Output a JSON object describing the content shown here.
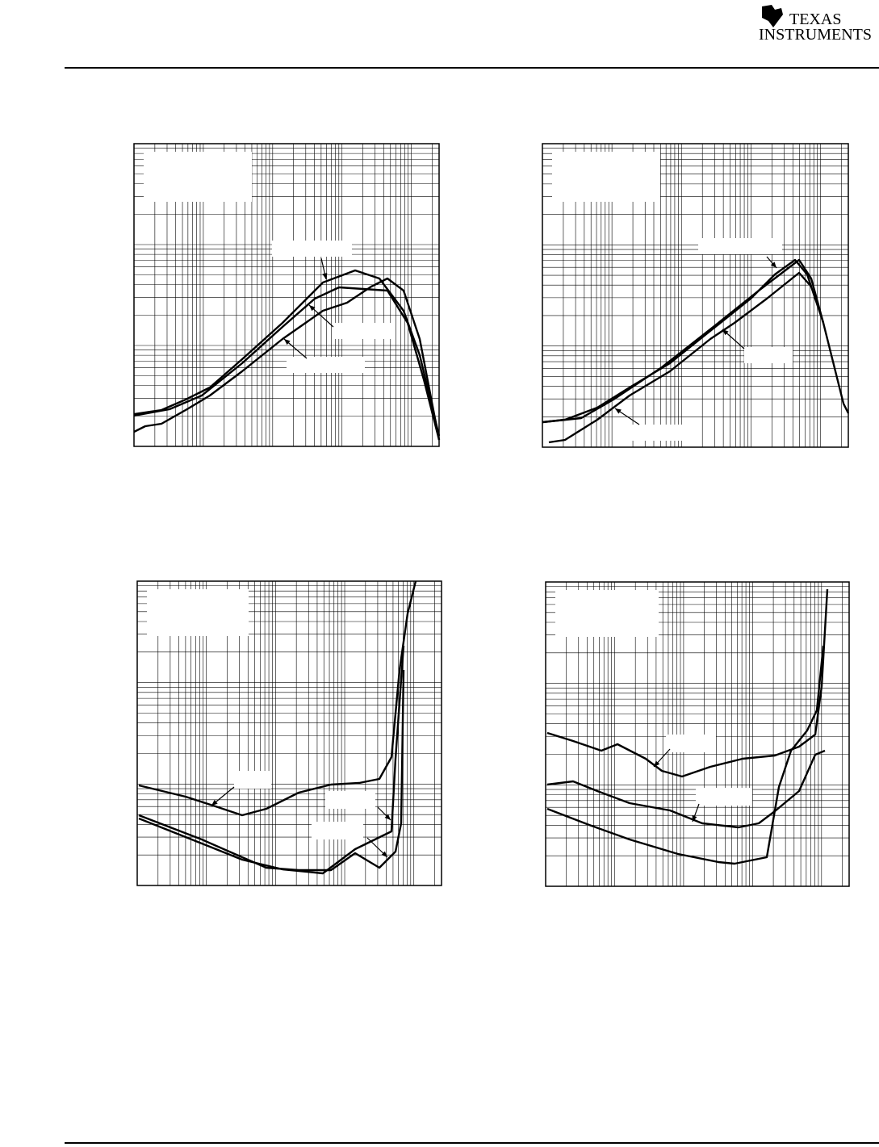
{
  "header": {
    "logo": {
      "line1": "TEXAS",
      "line2": "INSTRUMENTS"
    }
  }
}
